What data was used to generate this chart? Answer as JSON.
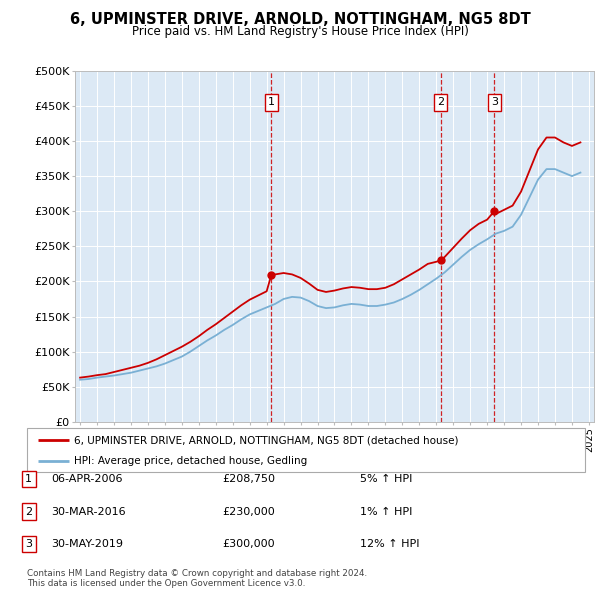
{
  "title": "6, UPMINSTER DRIVE, ARNOLD, NOTTINGHAM, NG5 8DT",
  "subtitle": "Price paid vs. HM Land Registry's House Price Index (HPI)",
  "ylim": [
    0,
    500000
  ],
  "yticks": [
    0,
    50000,
    100000,
    150000,
    200000,
    250000,
    300000,
    350000,
    400000,
    450000,
    500000
  ],
  "ytick_labels": [
    "£0",
    "£50K",
    "£100K",
    "£150K",
    "£200K",
    "£250K",
    "£300K",
    "£350K",
    "£400K",
    "£450K",
    "£500K"
  ],
  "bg_color": "#dce9f5",
  "red_color": "#cc0000",
  "blue_color": "#7ab0d4",
  "transaction_dates": [
    2006.27,
    2016.25,
    2019.42
  ],
  "transaction_prices": [
    208750,
    230000,
    300000
  ],
  "transaction_labels": [
    "1",
    "2",
    "3"
  ],
  "legend_red_label": "6, UPMINSTER DRIVE, ARNOLD, NOTTINGHAM, NG5 8DT (detached house)",
  "legend_blue_label": "HPI: Average price, detached house, Gedling",
  "table_rows": [
    {
      "label": "1",
      "date": "06-APR-2006",
      "price": "£208,750",
      "pct": "5% ↑ HPI"
    },
    {
      "label": "2",
      "date": "30-MAR-2016",
      "price": "£230,000",
      "pct": "1% ↑ HPI"
    },
    {
      "label": "3",
      "date": "30-MAY-2019",
      "price": "£300,000",
      "pct": "12% ↑ HPI"
    }
  ],
  "footer": "Contains HM Land Registry data © Crown copyright and database right 2024.\nThis data is licensed under the Open Government Licence v3.0.",
  "hpi_x": [
    1995.0,
    1995.5,
    1996.0,
    1996.5,
    1997.0,
    1997.5,
    1998.0,
    1998.5,
    1999.0,
    1999.5,
    2000.0,
    2000.5,
    2001.0,
    2001.5,
    2002.0,
    2002.5,
    2003.0,
    2003.5,
    2004.0,
    2004.5,
    2005.0,
    2005.5,
    2006.0,
    2006.5,
    2007.0,
    2007.5,
    2008.0,
    2008.5,
    2009.0,
    2009.5,
    2010.0,
    2010.5,
    2011.0,
    2011.5,
    2012.0,
    2012.5,
    2013.0,
    2013.5,
    2014.0,
    2014.5,
    2015.0,
    2015.5,
    2016.0,
    2016.5,
    2017.0,
    2017.5,
    2018.0,
    2018.5,
    2019.0,
    2019.5,
    2020.0,
    2020.5,
    2021.0,
    2021.5,
    2022.0,
    2022.5,
    2023.0,
    2023.5,
    2024.0,
    2024.5
  ],
  "hpi_y": [
    60000,
    61000,
    63000,
    64500,
    66000,
    68000,
    70000,
    73000,
    76000,
    79000,
    83000,
    88000,
    93000,
    100000,
    108000,
    116000,
    123000,
    131000,
    138000,
    146000,
    153000,
    158000,
    163000,
    168000,
    175000,
    178000,
    177000,
    172000,
    165000,
    162000,
    163000,
    166000,
    168000,
    167000,
    165000,
    165000,
    167000,
    170000,
    175000,
    181000,
    188000,
    196000,
    204000,
    213000,
    224000,
    235000,
    245000,
    253000,
    260000,
    268000,
    272000,
    278000,
    295000,
    320000,
    345000,
    360000,
    360000,
    355000,
    350000,
    355000
  ],
  "red_x": [
    1995.0,
    1995.5,
    1996.0,
    1996.5,
    1997.0,
    1997.5,
    1998.0,
    1998.5,
    1999.0,
    1999.5,
    2000.0,
    2000.5,
    2001.0,
    2001.5,
    2002.0,
    2002.5,
    2003.0,
    2003.5,
    2004.0,
    2004.5,
    2005.0,
    2005.5,
    2006.0,
    2006.27,
    2006.5,
    2007.0,
    2007.5,
    2008.0,
    2008.5,
    2009.0,
    2009.5,
    2010.0,
    2010.5,
    2011.0,
    2011.5,
    2012.0,
    2012.5,
    2013.0,
    2013.5,
    2014.0,
    2014.5,
    2015.0,
    2015.5,
    2016.0,
    2016.25,
    2016.5,
    2017.0,
    2017.5,
    2018.0,
    2018.5,
    2019.0,
    2019.42,
    2019.5,
    2020.0,
    2020.5,
    2021.0,
    2021.5,
    2022.0,
    2022.5,
    2023.0,
    2023.5,
    2024.0,
    2024.5
  ],
  "red_y": [
    63000,
    64500,
    66500,
    68000,
    71000,
    74000,
    77000,
    80000,
    84000,
    89000,
    95000,
    101000,
    107000,
    114000,
    122000,
    131000,
    139000,
    148000,
    157000,
    166000,
    174000,
    180000,
    186000,
    208750,
    210000,
    212000,
    210000,
    205000,
    197000,
    188000,
    185000,
    187000,
    190000,
    192000,
    191000,
    189000,
    189000,
    191000,
    196000,
    203000,
    210000,
    217000,
    225000,
    228000,
    230000,
    235000,
    248000,
    261000,
    273000,
    282000,
    288000,
    300000,
    296000,
    302000,
    308000,
    328000,
    358000,
    388000,
    405000,
    405000,
    398000,
    393000,
    398000
  ]
}
